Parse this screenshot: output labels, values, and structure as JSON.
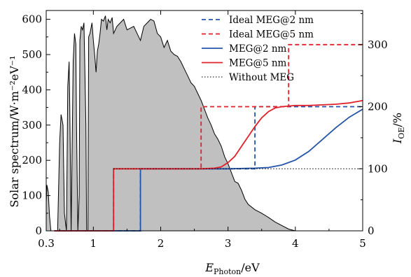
{
  "chart_data": {
    "type": "line",
    "x_label": {
      "main": "E",
      "sub": "Photon",
      "unit": "/eV"
    },
    "y_left_label": "Solar spectrum/W·m⁻²eV⁻¹",
    "y_right_label": {
      "main": "I",
      "sub": "OE",
      "unit": "/%"
    },
    "x_range": [
      0.3,
      5
    ],
    "y_left_range": [
      0,
      625
    ],
    "y_right_range": [
      0,
      355
    ],
    "x_ticks": [
      {
        "value": 0.3,
        "label": "0.3"
      },
      {
        "value": 1,
        "label": "1"
      },
      {
        "value": 2,
        "label": "2"
      },
      {
        "value": 3,
        "label": "3"
      },
      {
        "value": 4,
        "label": "4"
      },
      {
        "value": 5,
        "label": "5"
      }
    ],
    "y_left_ticks": [
      {
        "value": 0,
        "label": "0"
      },
      {
        "value": 100,
        "label": "100"
      },
      {
        "value": 200,
        "label": "200"
      },
      {
        "value": 300,
        "label": "300"
      },
      {
        "value": 400,
        "label": "400"
      },
      {
        "value": 500,
        "label": "500"
      },
      {
        "value": 600,
        "label": "600"
      }
    ],
    "y_right_ticks": [
      {
        "value": 0,
        "label": "0"
      },
      {
        "value": 100,
        "label": "100"
      },
      {
        "value": 200,
        "label": "200"
      },
      {
        "value": 300,
        "label": "300"
      }
    ],
    "solar_spectrum": {
      "fill_color": "#c0c0c0",
      "x": [
        0.3,
        0.31,
        0.33,
        0.35,
        0.37,
        0.38,
        0.4,
        0.42,
        0.43,
        0.45,
        0.47,
        0.5,
        0.52,
        0.55,
        0.57,
        0.6,
        0.62,
        0.64,
        0.65,
        0.67,
        0.7,
        0.72,
        0.74,
        0.75,
        0.77,
        0.79,
        0.8,
        0.82,
        0.84,
        0.86,
        0.87,
        0.89,
        0.9,
        0.92,
        0.93,
        0.95,
        0.98,
        1.0,
        1.02,
        1.04,
        1.06,
        1.08,
        1.1,
        1.12,
        1.15,
        1.18,
        1.2,
        1.22,
        1.25,
        1.28,
        1.3,
        1.35,
        1.4,
        1.45,
        1.5,
        1.55,
        1.6,
        1.65,
        1.7,
        1.75,
        1.8,
        1.85,
        1.9,
        1.95,
        2.0,
        2.05,
        2.1,
        2.15,
        2.2,
        2.25,
        2.3,
        2.35,
        2.4,
        2.45,
        2.5,
        2.55,
        2.6,
        2.65,
        2.7,
        2.75,
        2.8,
        2.85,
        2.9,
        2.95,
        3.0,
        3.05,
        3.1,
        3.15,
        3.2,
        3.25,
        3.3,
        3.4,
        3.5,
        3.6,
        3.7,
        3.8,
        3.9,
        4.0,
        4.05,
        4.1,
        4.2,
        4.5,
        5.0
      ],
      "y": [
        80,
        130,
        110,
        40,
        0,
        0,
        0,
        0,
        0,
        0,
        0,
        250,
        330,
        300,
        50,
        0,
        410,
        480,
        350,
        0,
        480,
        560,
        530,
        300,
        0,
        100,
        540,
        580,
        570,
        590,
        500,
        300,
        0,
        0,
        550,
        560,
        590,
        540,
        500,
        450,
        510,
        530,
        560,
        600,
        595,
        610,
        570,
        600,
        590,
        605,
        560,
        580,
        590,
        600,
        570,
        575,
        580,
        560,
        540,
        580,
        590,
        600,
        595,
        560,
        550,
        520,
        540,
        510,
        500,
        495,
        480,
        460,
        440,
        420,
        410,
        390,
        370,
        345,
        320,
        300,
        275,
        260,
        240,
        210,
        190,
        165,
        140,
        135,
        115,
        90,
        75,
        60,
        50,
        38,
        25,
        15,
        5,
        0,
        0,
        0,
        0,
        0,
        0
      ]
    },
    "series": [
      {
        "name": "Ideal MEG@2 nm",
        "color": "#2454a8",
        "dash": true,
        "axis": "right",
        "x": [
          0.42,
          1.7,
          1.7,
          3.4,
          3.4,
          5.0
        ],
        "y": [
          0,
          0,
          100,
          100,
          200,
          200
        ]
      },
      {
        "name": "Ideal MEG@5 nm",
        "color": "#e2202a",
        "dash": true,
        "axis": "right",
        "x": [
          0.42,
          1.3,
          1.3,
          2.6,
          2.6,
          3.9,
          3.9,
          5.0
        ],
        "y": [
          0,
          0,
          100,
          100,
          200,
          200,
          300,
          300
        ]
      },
      {
        "name": "MEG@2 nm",
        "color": "#2454a8",
        "dash": false,
        "axis": "right",
        "x": [
          0.42,
          1.7,
          1.7,
          3.0,
          3.4,
          3.6,
          3.8,
          4.0,
          4.2,
          4.4,
          4.6,
          4.8,
          5.0
        ],
        "y": [
          0,
          0,
          100,
          100,
          101,
          102,
          106,
          114,
          128,
          147,
          166,
          183,
          196
        ]
      },
      {
        "name": "MEG@5 nm",
        "color": "#e2202a",
        "dash": false,
        "axis": "right",
        "x": [
          0.42,
          1.3,
          1.3,
          2.6,
          2.8,
          2.9,
          3.0,
          3.1,
          3.2,
          3.3,
          3.4,
          3.5,
          3.6,
          3.7,
          3.8,
          3.9,
          4.0,
          4.2,
          4.4,
          4.6,
          4.8,
          5.0
        ],
        "y": [
          0,
          0,
          100,
          100,
          101,
          103,
          110,
          120,
          136,
          152,
          168,
          182,
          192,
          198,
          200,
          201,
          202,
          202,
          203,
          204,
          206,
          210
        ]
      },
      {
        "name": "Without MEG",
        "color": "#000000",
        "dash": "dot",
        "axis": "right",
        "x": [
          1.3,
          5.0
        ],
        "y": [
          100,
          100
        ]
      }
    ],
    "legend": {
      "position": "top-right"
    }
  }
}
